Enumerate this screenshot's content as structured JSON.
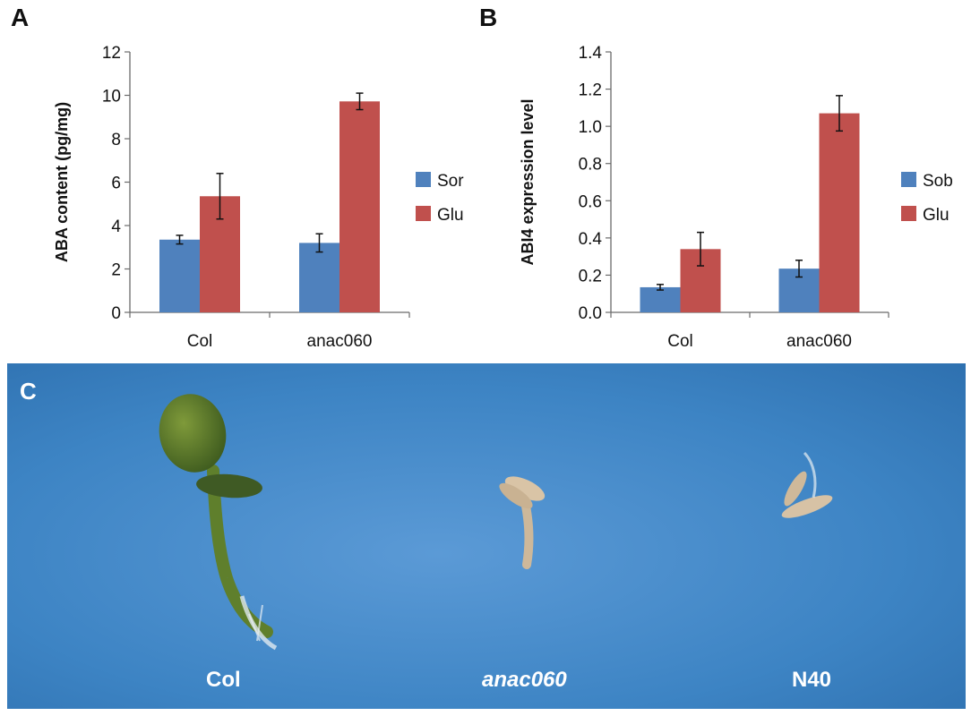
{
  "panels": {
    "a_label": "A",
    "b_label": "B",
    "c_label": "C"
  },
  "chart_data": [
    {
      "type": "bar",
      "title": "",
      "xlabel": "",
      "ylabel": "ABA content (pg/mg)",
      "ylim": [
        0,
        12
      ],
      "yticks": [
        0,
        2,
        4,
        6,
        8,
        10,
        12
      ],
      "categories": [
        "Col",
        "anac060"
      ],
      "series": [
        {
          "name": "Sor",
          "color": "#4f81bd",
          "values": [
            3.35,
            3.2
          ],
          "errors": [
            0.2,
            0.42
          ]
        },
        {
          "name": "Glu",
          "color": "#c0504d",
          "values": [
            5.35,
            9.72
          ],
          "errors": [
            1.05,
            0.38
          ]
        }
      ],
      "legend": "right",
      "grid": false
    },
    {
      "type": "bar",
      "title": "",
      "xlabel": "",
      "ylabel": "ABI4 expression level",
      "ylim": [
        0,
        1.4
      ],
      "yticks": [
        "0.0",
        "0.2",
        "0.4",
        "0.6",
        "0.8",
        "1.0",
        "1.2",
        "1.4"
      ],
      "categories": [
        "Col",
        "anac060"
      ],
      "series": [
        {
          "name": "Sob",
          "color": "#4f81bd",
          "values": [
            0.135,
            0.235
          ],
          "errors": [
            0.015,
            0.045
          ]
        },
        {
          "name": "Glu",
          "color": "#c0504d",
          "values": [
            0.34,
            1.07
          ],
          "errors": [
            0.09,
            0.095
          ]
        }
      ],
      "legend": "right",
      "grid": false
    }
  ],
  "photo": {
    "background": "#3f86c6",
    "labels": [
      "Col",
      "anac060",
      "N40"
    ]
  }
}
